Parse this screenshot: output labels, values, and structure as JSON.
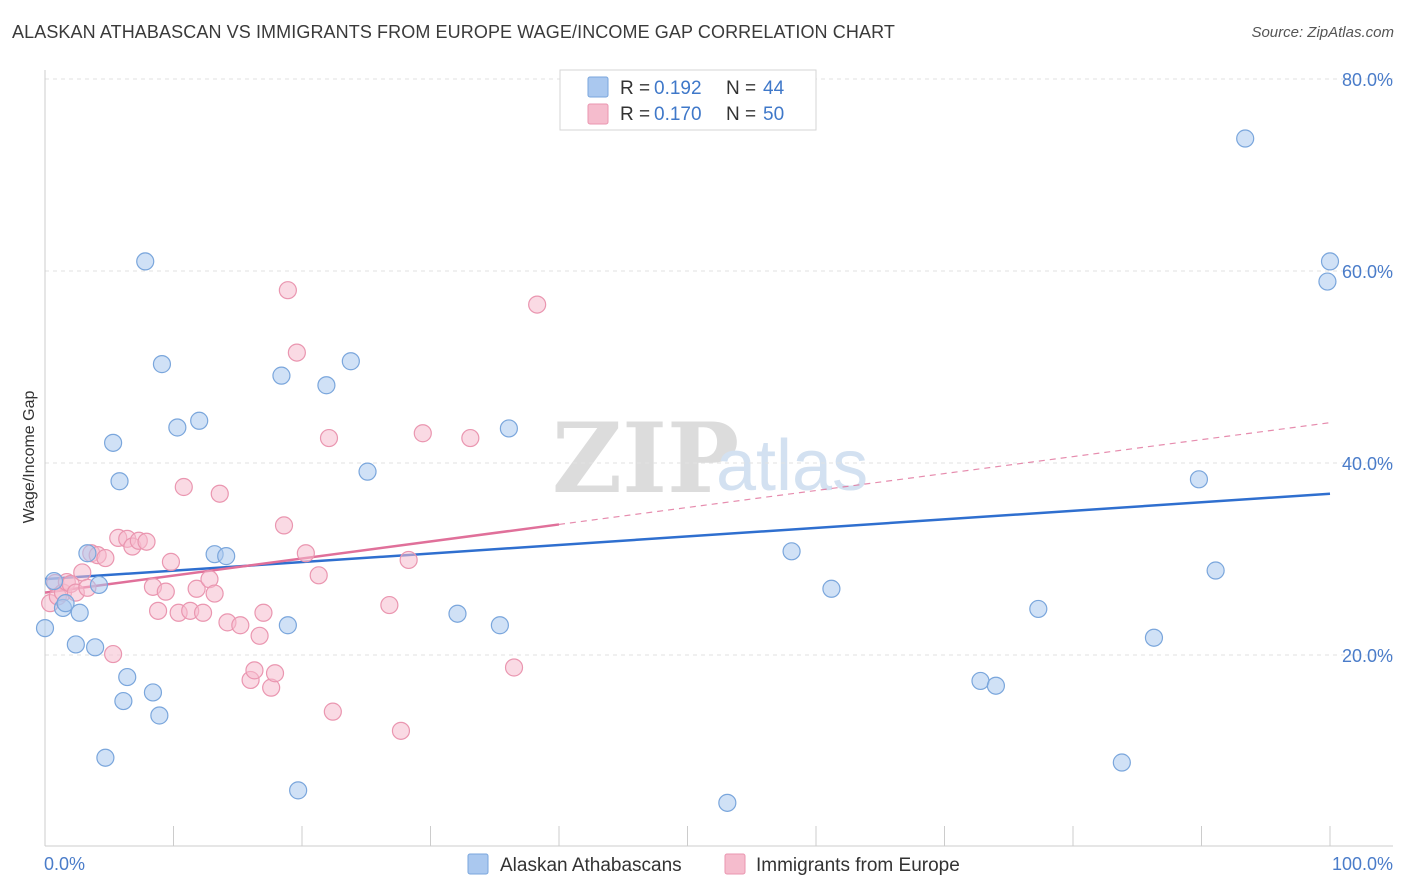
{
  "header": {
    "title": "ALASKAN ATHABASCAN VS IMMIGRANTS FROM EUROPE WAGE/INCOME GAP CORRELATION CHART",
    "source": "Source: ZipAtlas.com"
  },
  "watermark": {
    "zip": "ZIP",
    "atlas": "atlas"
  },
  "legend": {
    "r_label": "R =",
    "n_label": "N =",
    "series": [
      {
        "r": "0.192",
        "n": "44"
      },
      {
        "r": "0.170",
        "n": "50"
      }
    ]
  },
  "bottom_legend": {
    "items": [
      "Alaskan Athabascans",
      "Immigrants from Europe"
    ]
  },
  "colors": {
    "blue_fill": "#aac8ef",
    "blue_stroke": "#7aa6dc",
    "blue_line": "#2f6fcf",
    "pink_fill": "#f5bccd",
    "pink_stroke": "#ea96b0",
    "pink_line": "#e0709a",
    "grid": "#e2e2e2",
    "axis": "#cccccc"
  },
  "chart_data": {
    "type": "scatter",
    "title": "ALASKAN ATHABASCAN VS IMMIGRANTS FROM EUROPE WAGE/INCOME GAP CORRELATION CHART",
    "xlabel": "",
    "ylabel": "Wage/Income Gap",
    "xlim": [
      0,
      100
    ],
    "ylim": [
      0,
      83
    ],
    "x_tick_labels": [
      "0.0%",
      "100.0%"
    ],
    "y_ticks": [
      20,
      40,
      60,
      80
    ],
    "y_tick_labels": [
      "20.0%",
      "40.0%",
      "60.0%",
      "80.0%"
    ],
    "series": [
      {
        "name": "Alaskan Athabascans",
        "r": 0.192,
        "n": 44,
        "points": [
          [
            0.0,
            22.8
          ],
          [
            0.7,
            27.7
          ],
          [
            1.4,
            24.9
          ],
          [
            1.6,
            25.4
          ],
          [
            2.4,
            21.1
          ],
          [
            2.7,
            24.4
          ],
          [
            3.3,
            30.6
          ],
          [
            3.9,
            20.8
          ],
          [
            4.2,
            27.3
          ],
          [
            4.7,
            9.3
          ],
          [
            5.3,
            42.1
          ],
          [
            5.8,
            38.1
          ],
          [
            6.1,
            15.2
          ],
          [
            6.4,
            17.7
          ],
          [
            7.8,
            61.0
          ],
          [
            8.4,
            16.1
          ],
          [
            8.9,
            13.7
          ],
          [
            9.1,
            50.3
          ],
          [
            10.3,
            43.7
          ],
          [
            12.0,
            44.4
          ],
          [
            13.2,
            30.5
          ],
          [
            14.1,
            30.3
          ],
          [
            18.4,
            49.1
          ],
          [
            18.9,
            23.1
          ],
          [
            19.7,
            5.9
          ],
          [
            21.9,
            48.1
          ],
          [
            23.8,
            50.6
          ],
          [
            25.1,
            39.1
          ],
          [
            32.1,
            24.3
          ],
          [
            35.4,
            23.1
          ],
          [
            36.1,
            43.6
          ],
          [
            53.1,
            4.6
          ],
          [
            58.1,
            30.8
          ],
          [
            61.2,
            26.9
          ],
          [
            72.8,
            17.3
          ],
          [
            74.0,
            16.8
          ],
          [
            77.3,
            24.8
          ],
          [
            83.8,
            8.8
          ],
          [
            86.3,
            21.8
          ],
          [
            89.8,
            38.3
          ],
          [
            91.1,
            28.8
          ],
          [
            93.4,
            73.8
          ],
          [
            99.8,
            58.9
          ],
          [
            100.0,
            61.0
          ]
        ],
        "trend": {
          "x0": 0,
          "y0": 27.9,
          "x1": 100,
          "y1": 36.8
        }
      },
      {
        "name": "Immigrants from Europe",
        "r": 0.17,
        "n": 50,
        "points": [
          [
            0.4,
            25.4
          ],
          [
            0.8,
            27.5
          ],
          [
            1.0,
            26.1
          ],
          [
            1.4,
            26.5
          ],
          [
            1.7,
            27.6
          ],
          [
            2.0,
            27.4
          ],
          [
            2.4,
            26.5
          ],
          [
            2.9,
            28.6
          ],
          [
            3.3,
            27.0
          ],
          [
            3.6,
            30.6
          ],
          [
            4.1,
            30.4
          ],
          [
            4.7,
            30.1
          ],
          [
            5.3,
            20.1
          ],
          [
            5.7,
            32.2
          ],
          [
            6.4,
            32.1
          ],
          [
            6.8,
            31.3
          ],
          [
            7.3,
            31.9
          ],
          [
            7.9,
            31.8
          ],
          [
            8.4,
            27.1
          ],
          [
            8.8,
            24.6
          ],
          [
            9.4,
            26.6
          ],
          [
            9.8,
            29.7
          ],
          [
            10.4,
            24.4
          ],
          [
            10.8,
            37.5
          ],
          [
            11.3,
            24.6
          ],
          [
            11.8,
            26.9
          ],
          [
            12.3,
            24.4
          ],
          [
            12.8,
            27.9
          ],
          [
            13.2,
            26.4
          ],
          [
            13.6,
            36.8
          ],
          [
            14.2,
            23.4
          ],
          [
            15.2,
            23.1
          ],
          [
            16.0,
            17.4
          ],
          [
            16.3,
            18.4
          ],
          [
            16.7,
            22.0
          ],
          [
            17.0,
            24.4
          ],
          [
            17.6,
            16.6
          ],
          [
            17.9,
            18.1
          ],
          [
            18.6,
            33.5
          ],
          [
            18.9,
            58.0
          ],
          [
            19.6,
            51.5
          ],
          [
            20.3,
            30.6
          ],
          [
            21.3,
            28.3
          ],
          [
            22.1,
            42.6
          ],
          [
            22.4,
            14.1
          ],
          [
            26.8,
            25.2
          ],
          [
            27.7,
            12.1
          ],
          [
            28.3,
            29.9
          ],
          [
            29.4,
            43.1
          ],
          [
            33.1,
            42.6
          ]
        ],
        "trend_solid": {
          "x0": 0,
          "y0": 26.5,
          "x1": 40,
          "y1": 33.6
        },
        "trend_dashed": {
          "x0": 40,
          "y0": 33.6,
          "x1": 100,
          "y1": 44.2
        },
        "extra_points_note": "",
        "late_points": [
          [
            38.3,
            56.5
          ],
          [
            36.5,
            18.7
          ]
        ]
      }
    ]
  }
}
